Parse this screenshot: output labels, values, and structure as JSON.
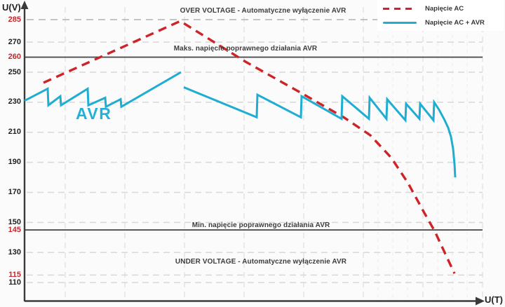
{
  "axis": {
    "y_unit": "U(V)",
    "x_unit": "U(T)",
    "ticks": [
      {
        "label": "285",
        "v": 285,
        "color": "red",
        "line": "dashed-dark"
      },
      {
        "label": "270",
        "v": 270,
        "color": "black",
        "line": "dashed"
      },
      {
        "label": "260",
        "v": 260,
        "color": "red",
        "line": "solid"
      },
      {
        "label": "250",
        "v": 250,
        "color": "black",
        "line": "dashed"
      },
      {
        "label": "230",
        "v": 230,
        "color": "black",
        "line": "dashed"
      },
      {
        "label": "210",
        "v": 210,
        "color": "black",
        "line": "dashed"
      },
      {
        "label": "190",
        "v": 190,
        "color": "black",
        "line": "dashed"
      },
      {
        "label": "170",
        "v": 170,
        "color": "black",
        "line": "dashed"
      },
      {
        "label": "150",
        "v": 150,
        "color": "black",
        "line": "dashed"
      },
      {
        "label": "145",
        "v": 145,
        "color": "red",
        "line": "solid"
      },
      {
        "label": "130",
        "v": 130,
        "color": "black",
        "line": "dashed"
      },
      {
        "label": "115",
        "v": 115,
        "color": "red",
        "line": "dashed"
      },
      {
        "label": "110",
        "v": 110,
        "color": "black",
        "line": "dashed"
      }
    ]
  },
  "annotations": {
    "over": "OVER VOLTAGE - Automatyczne wyłączenie AVR",
    "maks": "Maks. napięcie poprawnego działania AVR",
    "min": "Min. napięcie poprawnego działania AVR",
    "under": "UNDER VOLTAGE - Automatyczne wyłączenie AVR",
    "avr_big_label": "AVR"
  },
  "legend": {
    "items": [
      {
        "label": "Napięcie AC",
        "style": "dashed",
        "color": "#cc2428"
      },
      {
        "label": "Napięcie AC + AVR",
        "style": "solid",
        "color": "#1fadd2"
      }
    ]
  },
  "colors": {
    "ac_red": "#cc2428",
    "avr_blue": "#1fadd2",
    "red_tick": "#c2262b",
    "solid_threshold_line": "#4f4f4f",
    "dark_dashed_line": "#b2b2b2",
    "light_dashed_line": "#d8d8d8",
    "grid_vertical_major": "#e2e2e2",
    "grid_vertical_minor": "#eeeeee",
    "axis": "#3a3a3a",
    "background": "#fbfbfb"
  },
  "chart_data": {
    "type": "line",
    "title": "",
    "xlabel": "U(T)",
    "ylabel": "U(V)",
    "ylim": [
      97,
      290
    ],
    "grid": true,
    "legend_position": "top-right",
    "y_ticks": [
      285,
      270,
      260,
      250,
      230,
      210,
      190,
      170,
      150,
      145,
      130,
      115,
      110
    ],
    "thresholds": {
      "over_voltage_avr_shutdown": 285,
      "max_correct_avr_operation": 260,
      "min_correct_avr_operation": 145,
      "under_voltage_avr_shutdown": 115
    },
    "series": [
      {
        "name": "Napięcie AC",
        "color": "#cc2428",
        "dash": true,
        "width": 3.4,
        "segments": [
          [
            [
              62,
              243
            ],
            [
              257,
              284
            ],
            [
              350,
              257
            ],
            [
              430,
              236
            ],
            [
              490,
              220
            ],
            [
              528,
              208
            ],
            [
              558,
              193
            ],
            [
              582,
              176
            ],
            [
              603,
              158
            ],
            [
              620,
              144
            ],
            [
              635,
              129
            ],
            [
              648,
              116
            ]
          ]
        ]
      },
      {
        "name": "Napięcie AC + AVR",
        "color": "#1fadd2",
        "dash": false,
        "width": 3,
        "segments": [
          [
            [
              35,
              231
            ],
            [
              68,
              239
            ],
            [
              69,
              228
            ],
            [
              86,
              234
            ],
            [
              87,
              228
            ],
            [
              125,
              239
            ],
            [
              126,
              228
            ],
            [
              150,
              233
            ],
            [
              151,
              227
            ],
            [
              172,
              232
            ],
            [
              173,
              227
            ],
            [
              258,
              250
            ]
          ],
          [
            [
              262,
              240
            ],
            [
              366,
              220
            ],
            [
              367,
              235
            ],
            [
              429,
              220
            ],
            [
              430,
              234
            ],
            [
              487,
              219
            ],
            [
              488,
              234
            ],
            [
              526,
              219
            ],
            [
              527,
              233
            ],
            [
              551,
              219
            ],
            [
              552,
              232
            ],
            [
              578,
              218
            ],
            [
              579,
              229
            ],
            [
              598,
              219
            ],
            [
              599,
              229
            ],
            [
              618,
              218
            ],
            [
              619,
              230
            ],
            [
              626,
              225
            ],
            [
              633,
              219
            ],
            [
              639,
              213
            ],
            [
              643,
              207
            ],
            [
              646,
              199
            ],
            [
              648,
              189
            ],
            [
              649,
              180
            ]
          ]
        ]
      }
    ],
    "grid_x_major": [
      93,
      178,
      263,
      348,
      433,
      518,
      603,
      688
    ],
    "grid_x_minor": [
      539,
      560,
      581,
      624,
      645,
      666
    ]
  }
}
